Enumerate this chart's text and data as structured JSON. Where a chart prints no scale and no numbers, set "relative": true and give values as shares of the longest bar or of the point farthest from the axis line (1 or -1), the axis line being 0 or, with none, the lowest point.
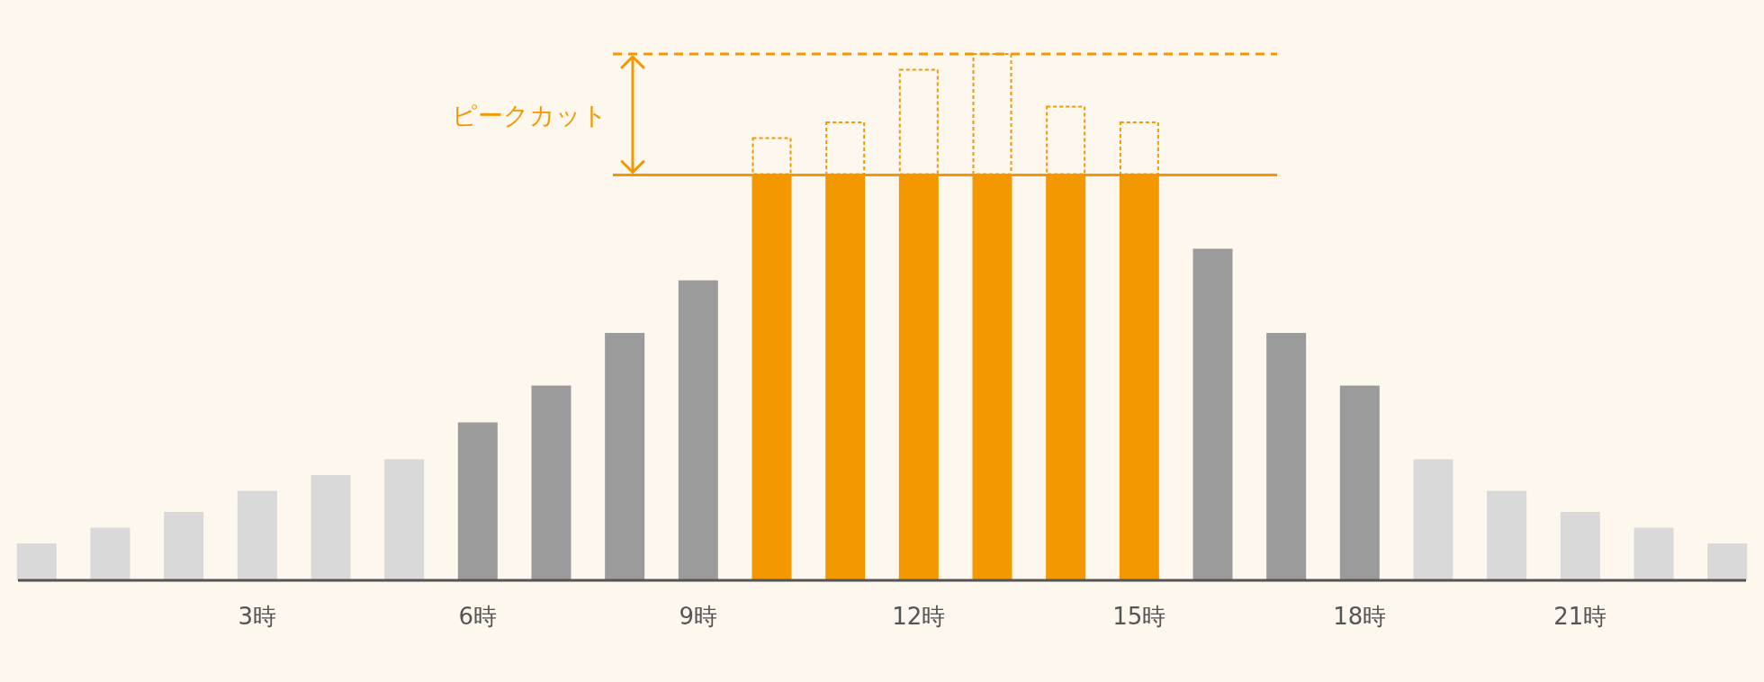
{
  "chart_data": {
    "type": "bar",
    "relative": true,
    "stacked": true,
    "categories": [
      null,
      null,
      null,
      "3時",
      null,
      null,
      "6時",
      null,
      null,
      "9時",
      null,
      null,
      "12時",
      null,
      null,
      "15時",
      null,
      null,
      "18時",
      null,
      null,
      "21時",
      null,
      null
    ],
    "series": [
      {
        "values": [
          0.07,
          0.1,
          0.13,
          0.17,
          0.2,
          0.23,
          0.3,
          0.37,
          0.47,
          0.57,
          0.77,
          0.77,
          0.77,
          0.77,
          0.77,
          0.77,
          0.63,
          0.47,
          0.37,
          0.23,
          0.17,
          0.13,
          0.1,
          0.07
        ],
        "colors": [
          "#d9d9d9",
          "#d9d9d9",
          "#d9d9d9",
          "#d9d9d9",
          "#d9d9d9",
          "#d9d9d9",
          "#9b9b9b",
          "#9b9b9b",
          "#9b9b9b",
          "#9b9b9b",
          "#f39800",
          "#f39800",
          "#f39800",
          "#f39800",
          "#f39800",
          "#f39800",
          "#9b9b9b",
          "#9b9b9b",
          "#9b9b9b",
          "#d9d9d9",
          "#d9d9d9",
          "#d9d9d9",
          "#d9d9d9",
          "#d9d9d9"
        ]
      },
      {
        "values": [
          null,
          null,
          null,
          null,
          null,
          null,
          null,
          null,
          null,
          null,
          0.07,
          0.1,
          0.2,
          0.23,
          0.13,
          0.1,
          null,
          null,
          null,
          null,
          null,
          null,
          null,
          null
        ],
        "color": "#f39800",
        "line_style": "dashed"
      }
    ],
    "ref_lines": [
      {
        "axis": "y",
        "value": 0.77,
        "color": "#f39800",
        "line_style": "solid"
      },
      {
        "axis": "y",
        "value": 1,
        "color": "#f39800",
        "line_style": "dashed"
      }
    ],
    "annotations": [
      "ピークカット"
    ]
  }
}
